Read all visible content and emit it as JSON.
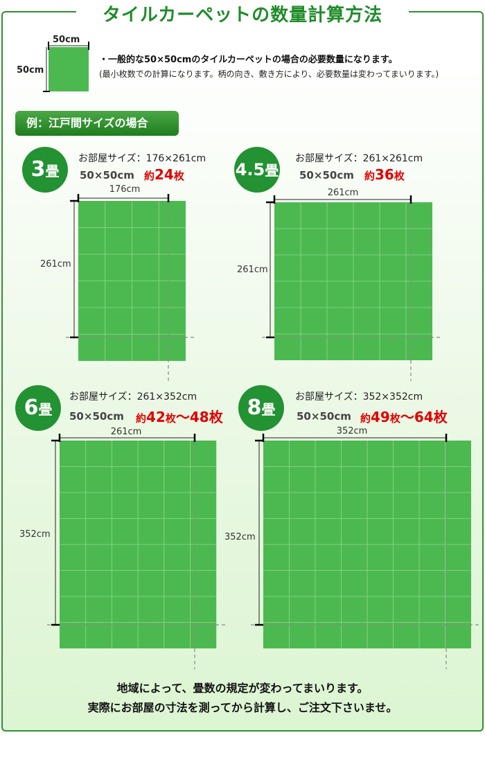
{
  "title": "タイルカーペットの数量計算方法",
  "sample": {
    "width_label": "50cm",
    "height_label": "50cm"
  },
  "notes": {
    "line1": "・一般的な50×50cmのタイルカーペットの場合の必要数量になります。",
    "line2": "(最小枚数での計算になります。柄の向き、敷き方により、必要数量は変わってまいります。)"
  },
  "example_label": "例：江戸間サイズの場合",
  "rooms": [
    {
      "badge_num": "3",
      "badge_unit": "畳",
      "room_size": "お部屋サイズ：176×261cm",
      "tile_size": "50×50cm",
      "qty_prefix": "約",
      "qty_value": "24",
      "qty_unit": "枚",
      "qty_suffix": "",
      "width_label": "176cm",
      "height_label": "261cm",
      "cols": 4,
      "rows": 6
    },
    {
      "badge_num": "4.5",
      "badge_unit": "畳",
      "room_size": "お部屋サイズ：261×261cm",
      "tile_size": "50×50cm",
      "qty_prefix": "約",
      "qty_value": "36",
      "qty_unit": "枚",
      "qty_suffix": "",
      "width_label": "261cm",
      "height_label": "261cm",
      "cols": 6,
      "rows": 6
    },
    {
      "badge_num": "6",
      "badge_unit": "畳",
      "room_size": "お部屋サイズ：261×352cm",
      "tile_size": "50×50cm",
      "qty_prefix": "約",
      "qty_value": "42",
      "qty_unit": "枚",
      "qty_suffix": "〜48枚",
      "width_label": "261cm",
      "height_label": "352cm",
      "cols": 6,
      "rows": 8
    },
    {
      "badge_num": "8",
      "badge_unit": "畳",
      "room_size": "お部屋サイズ：352×352cm",
      "tile_size": "50×50cm",
      "qty_prefix": "約",
      "qty_value": "49",
      "qty_unit": "枚",
      "qty_suffix": "〜64枚",
      "width_label": "352cm",
      "height_label": "352cm",
      "cols": 8,
      "rows": 8
    }
  ],
  "footer": {
    "line1": "地域によって、畳数の規定が変わってまいります。",
    "line2": "実際にお部屋の寸法を測ってから計算し、ご注文下さいませ。"
  },
  "colors": {
    "accent": "#239232",
    "tile": "#4cb950",
    "qty": "#e00000"
  }
}
